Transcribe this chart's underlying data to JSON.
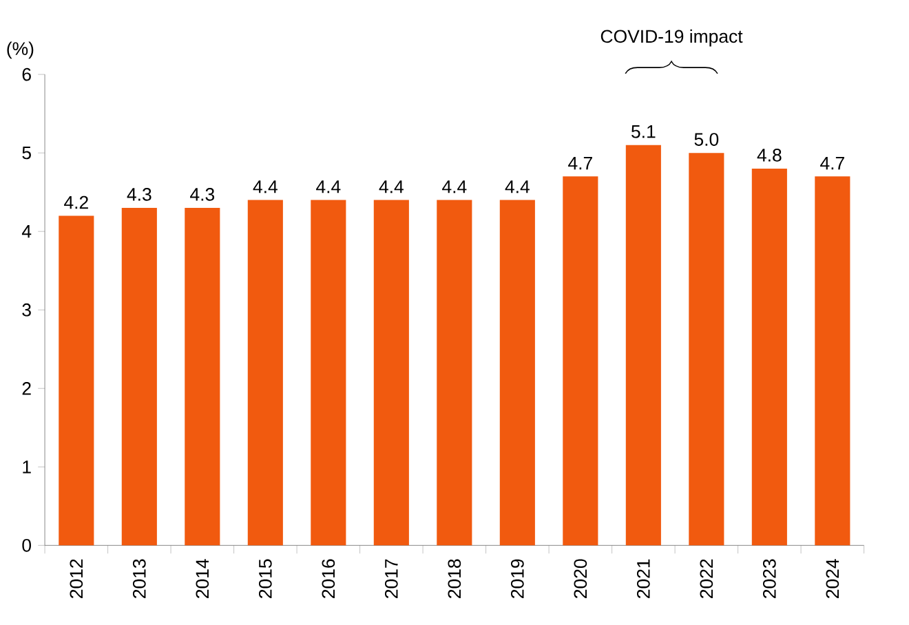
{
  "chart_data": {
    "type": "bar",
    "ylabel": "(%)",
    "categories": [
      "2012",
      "2013",
      "2014",
      "2015",
      "2016",
      "2017",
      "2018",
      "2019",
      "2020",
      "2021",
      "2022",
      "2023",
      "2024"
    ],
    "values": [
      4.2,
      4.3,
      4.3,
      4.4,
      4.4,
      4.4,
      4.4,
      4.4,
      4.7,
      5.1,
      5.0,
      4.8,
      4.7
    ],
    "value_labels": [
      "4.2",
      "4.3",
      "4.3",
      "4.4",
      "4.4",
      "4.4",
      "4.4",
      "4.4",
      "4.7",
      "5.1",
      "5.0",
      "4.8",
      "4.7"
    ],
    "color": "#f15a0f",
    "ylim": [
      0,
      6
    ],
    "yticks": [
      0,
      1,
      2,
      3,
      4,
      5,
      6
    ],
    "annotations": [
      "COVID-19 impact"
    ]
  }
}
